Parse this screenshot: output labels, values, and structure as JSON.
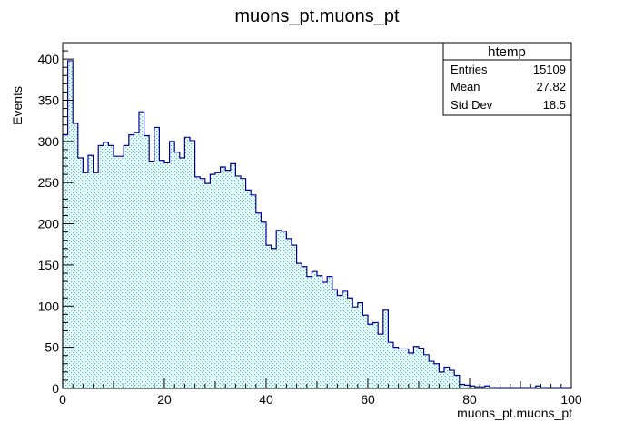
{
  "chart_data": {
    "type": "bar",
    "title": "muons_pt.muons_pt",
    "xlabel": "muons_pt.muons_pt",
    "ylabel": "Events",
    "xlim": [
      0,
      100
    ],
    "ylim": [
      0,
      420
    ],
    "bin_width": 1,
    "x_major_ticks": [
      0,
      20,
      40,
      60,
      80,
      100
    ],
    "y_major_ticks": [
      0,
      50,
      100,
      150,
      200,
      250,
      300,
      350,
      400
    ],
    "grid": false,
    "fill_color": "#33cccc",
    "line_color": "#000099",
    "values": [
      308,
      398,
      322,
      280,
      262,
      283,
      262,
      295,
      299,
      295,
      282,
      282,
      295,
      308,
      311,
      336,
      307,
      276,
      317,
      277,
      274,
      300,
      287,
      280,
      305,
      301,
      257,
      255,
      249,
      260,
      262,
      269,
      265,
      273,
      258,
      255,
      241,
      235,
      213,
      202,
      174,
      170,
      192,
      191,
      182,
      174,
      152,
      148,
      136,
      142,
      137,
      129,
      136,
      120,
      113,
      118,
      110,
      99,
      104,
      89,
      78,
      80,
      66,
      95,
      56,
      50,
      48,
      48,
      43,
      51,
      49,
      41,
      33,
      30,
      20,
      26,
      22,
      16,
      5,
      4,
      3,
      2,
      2,
      3,
      1,
      1,
      1,
      1,
      1,
      1,
      1,
      1,
      1,
      3,
      1,
      1,
      1,
      1,
      1,
      1
    ]
  },
  "stats_box": {
    "title": "htemp",
    "rows": [
      {
        "label": "Entries",
        "value": "15109"
      },
      {
        "label": "Mean",
        "value": "27.82"
      },
      {
        "label": "Std Dev",
        "value": "18.5"
      }
    ]
  }
}
